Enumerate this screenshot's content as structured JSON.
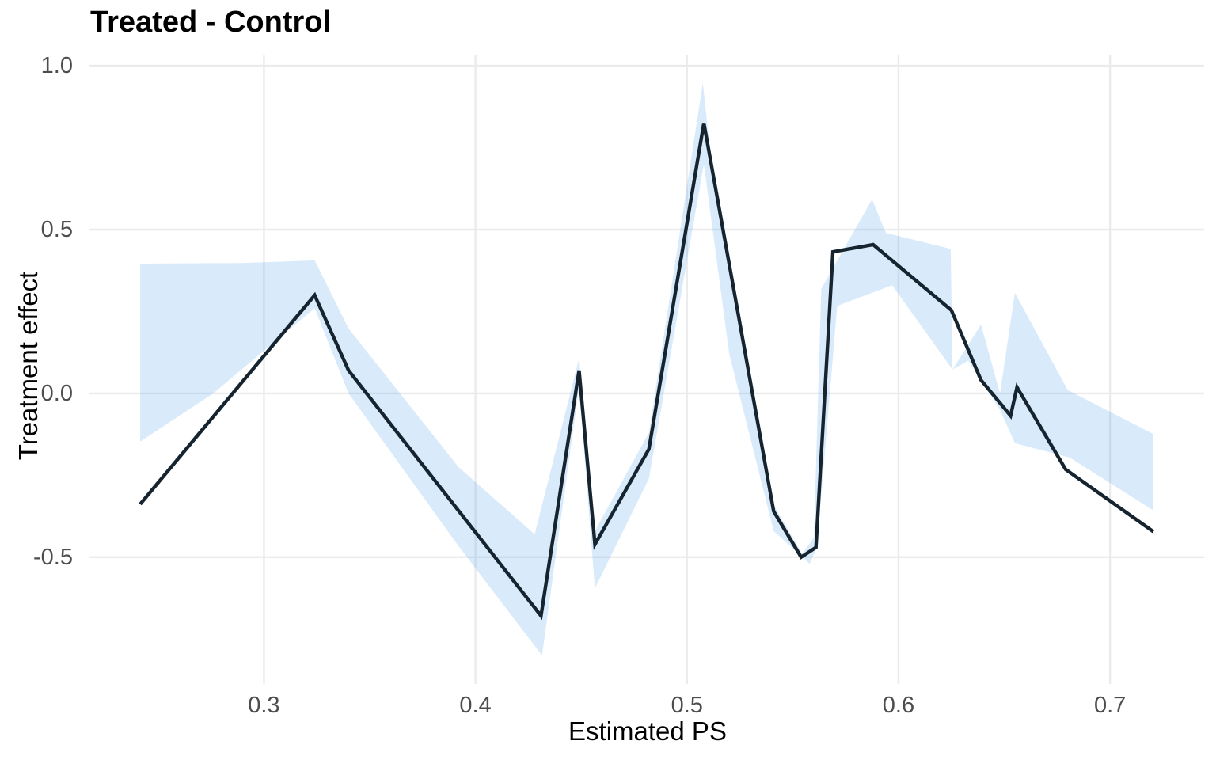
{
  "chart_data": {
    "type": "line",
    "title": "Treated - Control",
    "xlabel": "Estimated PS",
    "ylabel": "Treatment effect",
    "xlim": [
      0.2175,
      0.7445
    ],
    "ylim": [
      -0.887,
      1.034
    ],
    "grid": "major-only",
    "legend": "none",
    "x_ticks": [
      {
        "value": 0.3,
        "label": "0.3"
      },
      {
        "value": 0.4,
        "label": "0.4"
      },
      {
        "value": 0.5,
        "label": "0.5"
      },
      {
        "value": 0.6,
        "label": "0.6"
      },
      {
        "value": 0.7,
        "label": "0.7"
      }
    ],
    "y_ticks": [
      {
        "value": 1.0,
        "label": "1.0"
      },
      {
        "value": 0.5,
        "label": "0.5"
      },
      {
        "value": 0.0,
        "label": "0.0"
      },
      {
        "value": -0.5,
        "label": "-0.5"
      }
    ],
    "series": [
      {
        "name": "treatment_effect_line",
        "points": [
          [
            0.2415,
            -0.338
          ],
          [
            0.324,
            0.3
          ],
          [
            0.34,
            0.07
          ],
          [
            0.431,
            -0.679
          ],
          [
            0.449,
            0.07
          ],
          [
            0.4565,
            -0.461
          ],
          [
            0.482,
            -0.17
          ],
          [
            0.508,
            0.825
          ],
          [
            0.541,
            -0.36
          ],
          [
            0.554,
            -0.5
          ],
          [
            0.561,
            -0.47
          ],
          [
            0.569,
            0.432
          ],
          [
            0.588,
            0.454
          ],
          [
            0.625,
            0.254
          ],
          [
            0.639,
            0.041
          ],
          [
            0.653,
            -0.068
          ],
          [
            0.656,
            0.019
          ],
          [
            0.679,
            -0.232
          ],
          [
            0.7205,
            -0.422
          ]
        ]
      }
    ],
    "ribbon": {
      "name": "confidence_band",
      "upper": [
        [
          0.2415,
          0.396
        ],
        [
          0.29,
          0.398
        ],
        [
          0.324,
          0.406
        ],
        [
          0.34,
          0.198
        ],
        [
          0.392,
          -0.225
        ],
        [
          0.428,
          -0.43
        ],
        [
          0.449,
          0.107
        ],
        [
          0.4565,
          -0.42
        ],
        [
          0.482,
          -0.12
        ],
        [
          0.5075,
          0.947
        ],
        [
          0.512,
          0.68
        ],
        [
          0.54,
          -0.33
        ],
        [
          0.5545,
          -0.49
        ],
        [
          0.56,
          -0.44
        ],
        [
          0.5635,
          0.32
        ],
        [
          0.5875,
          0.592
        ],
        [
          0.594,
          0.49
        ],
        [
          0.6247,
          0.441
        ],
        [
          0.6255,
          0.073
        ],
        [
          0.639,
          0.21
        ],
        [
          0.648,
          0.0
        ],
        [
          0.655,
          0.307
        ],
        [
          0.68,
          0.01
        ],
        [
          0.7205,
          -0.124
        ]
      ],
      "lower": [
        [
          0.2415,
          -0.147
        ],
        [
          0.276,
          0.0
        ],
        [
          0.324,
          0.26
        ],
        [
          0.34,
          0.0
        ],
        [
          0.392,
          -0.466
        ],
        [
          0.4315,
          -0.8
        ],
        [
          0.449,
          0.02
        ],
        [
          0.4565,
          -0.595
        ],
        [
          0.482,
          -0.26
        ],
        [
          0.508,
          0.7
        ],
        [
          0.52,
          0.12
        ],
        [
          0.541,
          -0.42
        ],
        [
          0.558,
          -0.52
        ],
        [
          0.5614,
          -0.47
        ],
        [
          0.571,
          0.267
        ],
        [
          0.597,
          0.33
        ],
        [
          0.6255,
          0.073
        ],
        [
          0.633,
          0.1
        ],
        [
          0.648,
          -0.05
        ],
        [
          0.655,
          -0.152
        ],
        [
          0.681,
          -0.196
        ],
        [
          0.7205,
          -0.357
        ]
      ]
    }
  },
  "colors": {
    "line": "#16242f",
    "ribbon_rgba": "rgba(80,160,235,0.22)",
    "grid": "#ebebeb",
    "tick_label": "#4d4d4d",
    "text": "#000000",
    "background": "#ffffff"
  }
}
